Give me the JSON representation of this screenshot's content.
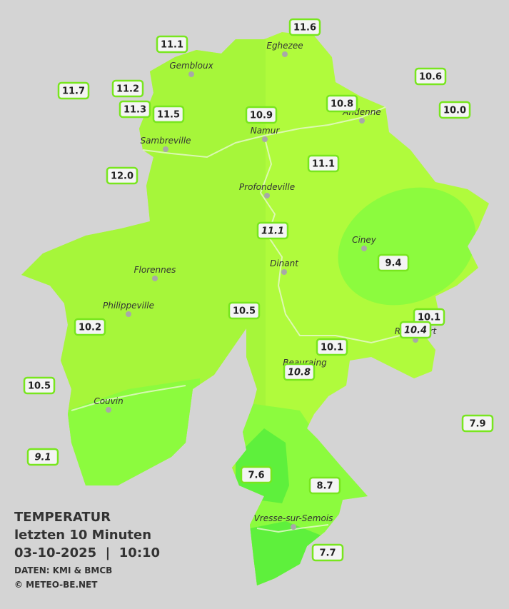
{
  "map": {
    "towns": [
      "Eghezee",
      "Gembloux",
      "Andenne",
      "Namur",
      "Sambreville",
      "Profondeville",
      "Ciney",
      "Dinant",
      "Florennes",
      "Philippeville",
      "Rochefort",
      "Beauraing",
      "Couvin",
      "Vresse-sur-Semois"
    ],
    "readings": [
      "11.6",
      "11.1",
      "10.6",
      "11.7",
      "11.2",
      "10.8",
      "11.3",
      "11.5",
      "10.9",
      "10.0",
      "11.1",
      "12.0",
      "11.1",
      "9.4",
      "10.5",
      "10.1",
      "10.2",
      "10.4",
      "10.1",
      "10.8",
      "10.5",
      "7.9",
      "9.1",
      "7.6",
      "8.7",
      "7.7"
    ],
    "legend": {
      "title": "TEMPERATUR",
      "period": "letzten 10 Minuten",
      "timestamp": "03-10-2025  |  10:10",
      "source": "DATEN: KMI & BMCB",
      "copyright": "© METEO-BE.NET"
    }
  }
}
